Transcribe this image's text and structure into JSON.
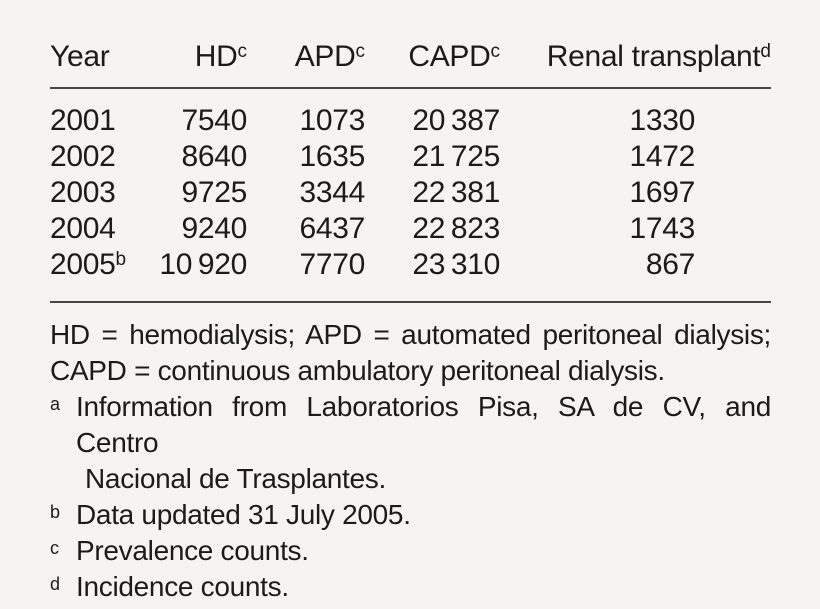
{
  "table": {
    "columns": [
      {
        "label": "Year",
        "sup": ""
      },
      {
        "label": "HD",
        "sup": "c"
      },
      {
        "label": "APD",
        "sup": "c"
      },
      {
        "label": "CAPD",
        "sup": "c"
      },
      {
        "label": "Renal transplant",
        "sup": "d"
      }
    ],
    "rows": [
      {
        "year": "2001",
        "year_sup": "",
        "hd": "7540",
        "apd": "1073",
        "capd": "20 387",
        "renal_transplant": "1330"
      },
      {
        "year": "2002",
        "year_sup": "",
        "hd": "8640",
        "apd": "1635",
        "capd": "21 725",
        "renal_transplant": "1472"
      },
      {
        "year": "2003",
        "year_sup": "",
        "hd": "9725",
        "apd": "3344",
        "capd": "22 381",
        "renal_transplant": "1697"
      },
      {
        "year": "2004",
        "year_sup": "",
        "hd": "9240",
        "apd": "6437",
        "capd": "22 823",
        "renal_transplant": "1743"
      },
      {
        "year": "2005",
        "year_sup": "b",
        "hd": "10 920",
        "apd": "7770",
        "capd": "23 310",
        "renal_transplant": "867"
      }
    ]
  },
  "footnotes": {
    "abbr": {
      "lines": [
        "HD = hemodialysis; APD = automated peritoneal dialysis;",
        "CAPD = continuous ambulatory peritoneal dialysis."
      ]
    },
    "a": {
      "sup": "a",
      "lines": [
        "Information from Laboratorios Pisa, SA de CV, and Centro",
        "Nacional de Trasplantes."
      ]
    },
    "b": {
      "sup": "b",
      "lines": [
        "Data updated 31 July 2005."
      ]
    },
    "c": {
      "sup": "c",
      "lines": [
        "Prevalence counts."
      ]
    },
    "d": {
      "sup": "d",
      "lines": [
        "Incidence counts."
      ]
    }
  },
  "colors": {
    "background": "#f5f4f2",
    "text": "#1b1b1b",
    "rule": "#474747"
  }
}
